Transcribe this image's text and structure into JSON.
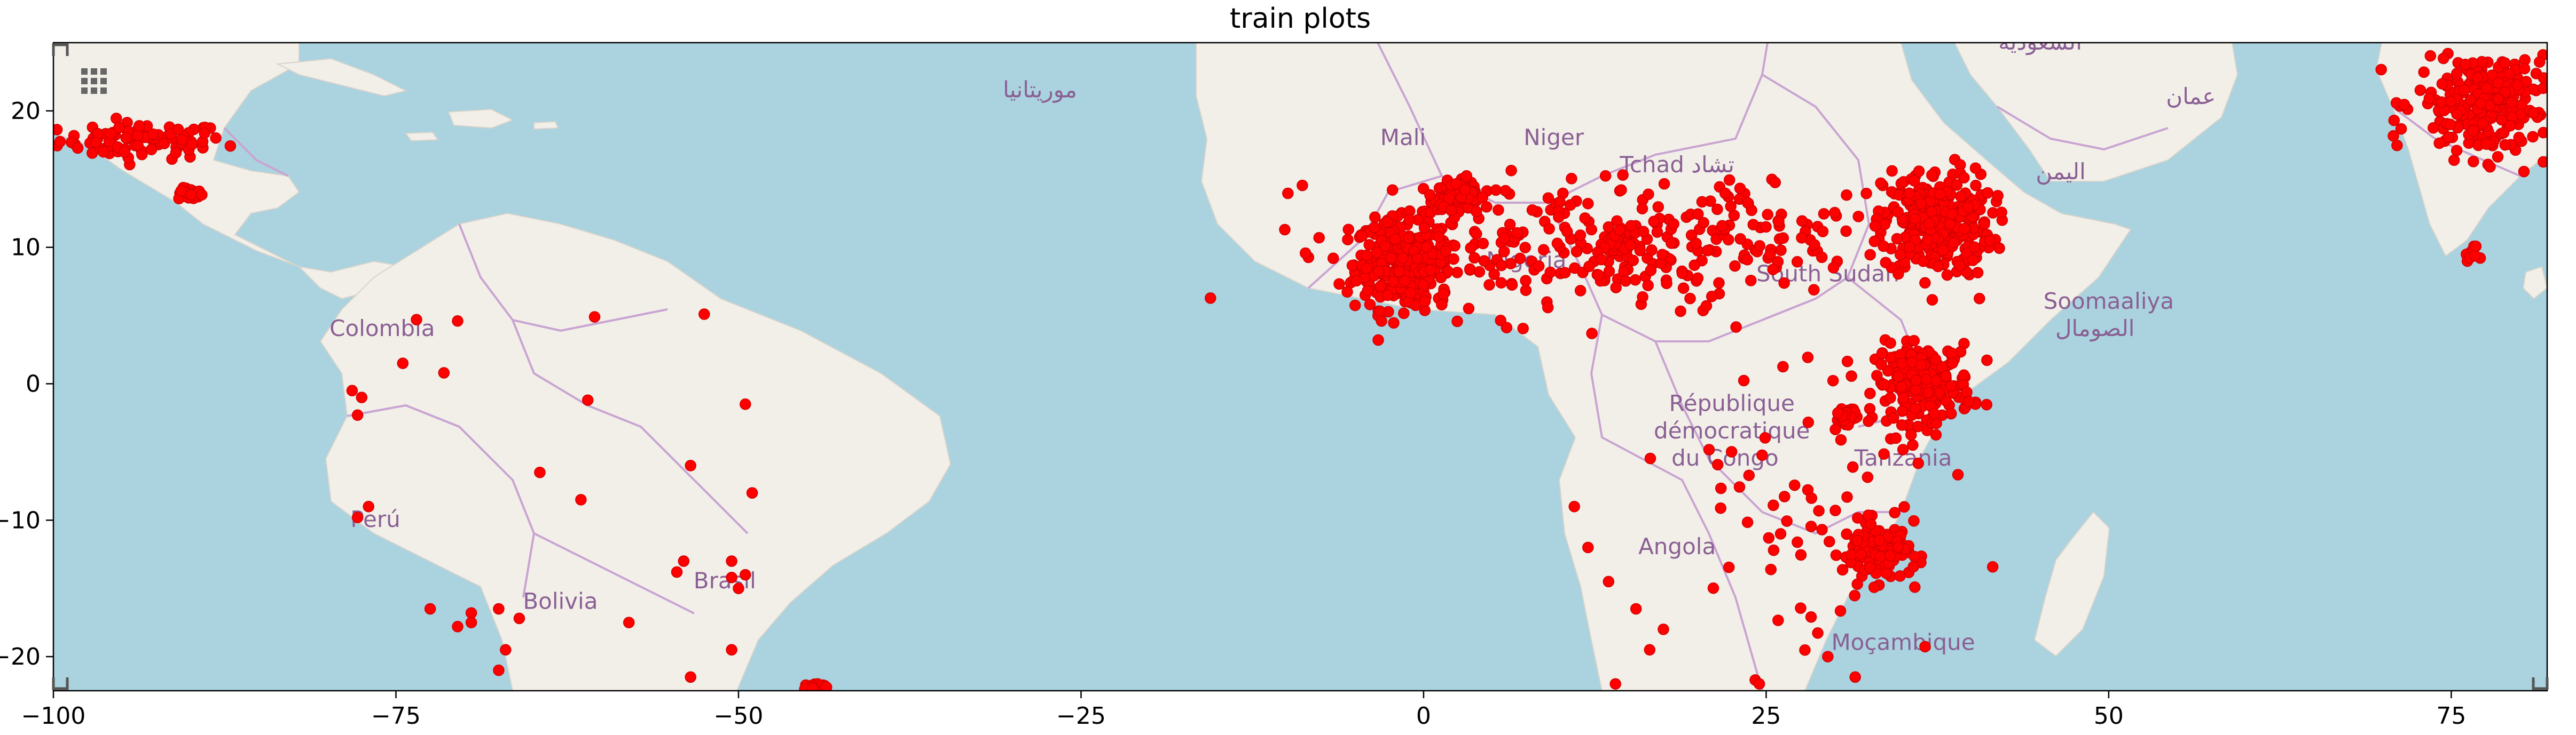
{
  "colors": {
    "ocean": "#aad3df",
    "land": "#f2efe9",
    "border": "#c9a4d1",
    "point": "#ff0000",
    "point_edge": "#d00000",
    "label": "#8a5f93"
  },
  "icons": {
    "grid": "grid-icon"
  },
  "map_labels": [
    {
      "id": "mauritania",
      "text": "موريتانيا",
      "lon": -28,
      "lat": 21
    },
    {
      "id": "mali",
      "text": "Mali",
      "lon": -1.5,
      "lat": 17.5
    },
    {
      "id": "niger",
      "text": "Niger",
      "lon": 9.5,
      "lat": 17.5
    },
    {
      "id": "chad",
      "text": "Tchad تشاد",
      "lon": 18.5,
      "lat": 15.5
    },
    {
      "id": "saudi",
      "text": "السعودية",
      "lon": 45,
      "lat": 24.5
    },
    {
      "id": "oman",
      "text": "عمان",
      "lon": 56,
      "lat": 20.5
    },
    {
      "id": "yemen",
      "text": "اليمن",
      "lon": 46.5,
      "lat": 15
    },
    {
      "id": "nigeria",
      "text": "Nigeria",
      "lon": 7.5,
      "lat": 8.5
    },
    {
      "id": "south_sudan",
      "text": "South Sudan",
      "lon": 29.5,
      "lat": 7.5
    },
    {
      "id": "somalia1",
      "text": "Soomaaliya",
      "lon": 50,
      "lat": 5.5
    },
    {
      "id": "somalia2",
      "text": "الصومال",
      "lon": 49,
      "lat": 3.5
    },
    {
      "id": "colombia",
      "text": "Colombia",
      "lon": -76,
      "lat": 3.5
    },
    {
      "id": "drc1",
      "text": "République",
      "lon": 22.5,
      "lat": -2
    },
    {
      "id": "drc2",
      "text": "démocratique",
      "lon": 22.5,
      "lat": -4
    },
    {
      "id": "drc3",
      "text": "du Congo",
      "lon": 22,
      "lat": -6
    },
    {
      "id": "tanzania",
      "text": "Tanzania",
      "lon": 35,
      "lat": -6
    },
    {
      "id": "peru",
      "text": "Perú",
      "lon": -76.5,
      "lat": -10.5
    },
    {
      "id": "angola",
      "text": "Angola",
      "lon": 18.5,
      "lat": -12.5
    },
    {
      "id": "brasil",
      "text": "Brasil",
      "lon": -51,
      "lat": -15
    },
    {
      "id": "bolivia",
      "text": "Bolivia",
      "lon": -63,
      "lat": -16.5
    },
    {
      "id": "mozambique",
      "text": "Moçambique",
      "lon": 35,
      "lat": -19.5
    }
  ],
  "chart_data": {
    "type": "scatter",
    "title": "train plots",
    "xlim": [
      -100,
      82
    ],
    "ylim": [
      -22.5,
      25
    ],
    "xticks": [
      -100,
      -75,
      -50,
      -25,
      0,
      25,
      50,
      75
    ],
    "yticks": [
      -20,
      -10,
      0,
      10,
      20
    ],
    "grid": false,
    "clusters": [
      {
        "lon": -93.5,
        "lat": 17.8,
        "rx": 5.5,
        "ry": 1.2,
        "n": 90
      },
      {
        "lon": -90,
        "lat": 13.9,
        "rx": 0.8,
        "ry": 0.4,
        "n": 25
      },
      {
        "lon": -1.5,
        "lat": 8.8,
        "rx": 3.2,
        "ry": 3.0,
        "n": 320
      },
      {
        "lon": 2.5,
        "lat": 13.8,
        "rx": 1.6,
        "ry": 0.9,
        "n": 120
      },
      {
        "lon": 14,
        "lat": 10.2,
        "rx": 0.9,
        "ry": 0.7,
        "n": 40
      },
      {
        "lon": 37.5,
        "lat": 11.8,
        "rx": 3.6,
        "ry": 3.6,
        "n": 320
      },
      {
        "lon": 36.5,
        "lat": 0,
        "rx": 3.2,
        "ry": 2.6,
        "n": 200
      },
      {
        "lon": 33,
        "lat": -12.3,
        "rx": 2.2,
        "ry": 2.0,
        "n": 110
      },
      {
        "lon": 30.8,
        "lat": -2.2,
        "rx": 0.9,
        "ry": 0.6,
        "n": 30
      },
      {
        "lon": 77.5,
        "lat": 20.5,
        "rx": 4.6,
        "ry": 3.6,
        "n": 260
      },
      {
        "lon": 76.5,
        "lat": 9.5,
        "rx": 0.4,
        "ry": 0.5,
        "n": 12
      },
      {
        "lon": -44.5,
        "lat": -22.3,
        "rx": 0.9,
        "ry": 0.3,
        "n": 14
      },
      {
        "lon": 10,
        "lat": 10,
        "rx": 14,
        "ry": 4.5,
        "n": 220
      },
      {
        "lon": 25,
        "lat": 11,
        "rx": 10,
        "ry": 4,
        "n": 90
      },
      {
        "lon": 28,
        "lat": -8,
        "rx": 9,
        "ry": 12,
        "n": 70
      }
    ],
    "points": [
      {
        "lon": -73.5,
        "lat": 4.7
      },
      {
        "lon": -70.5,
        "lat": 4.6
      },
      {
        "lon": -60.5,
        "lat": 4.9
      },
      {
        "lon": -52.5,
        "lat": 5.1
      },
      {
        "lon": -74.5,
        "lat": 1.5
      },
      {
        "lon": -71.5,
        "lat": 0.8
      },
      {
        "lon": -78.2,
        "lat": -0.5
      },
      {
        "lon": -77.5,
        "lat": -1.0
      },
      {
        "lon": -77.8,
        "lat": -2.3
      },
      {
        "lon": -61,
        "lat": -1.2
      },
      {
        "lon": -49.5,
        "lat": -1.5
      },
      {
        "lon": -77,
        "lat": -9.0
      },
      {
        "lon": -77.8,
        "lat": -9.8
      },
      {
        "lon": -64.5,
        "lat": -6.5
      },
      {
        "lon": -61.5,
        "lat": -8.5
      },
      {
        "lon": -53.5,
        "lat": -6.0
      },
      {
        "lon": -49,
        "lat": -8.0
      },
      {
        "lon": -54,
        "lat": -13.0
      },
      {
        "lon": -54.5,
        "lat": -13.8
      },
      {
        "lon": -50.5,
        "lat": -13.0
      },
      {
        "lon": -50.5,
        "lat": -14.2
      },
      {
        "lon": -50,
        "lat": -15.0
      },
      {
        "lon": -49.5,
        "lat": -14.0
      },
      {
        "lon": -67.5,
        "lat": -16.5
      },
      {
        "lon": -69.5,
        "lat": -16.8
      },
      {
        "lon": -69.5,
        "lat": -17.5
      },
      {
        "lon": -66,
        "lat": -17.2
      },
      {
        "lon": -58,
        "lat": -17.5
      },
      {
        "lon": -72.5,
        "lat": -16.5
      },
      {
        "lon": -70.5,
        "lat": -17.8
      },
      {
        "lon": -67,
        "lat": -19.5
      },
      {
        "lon": -67.5,
        "lat": -21.0
      },
      {
        "lon": -50.5,
        "lat": -19.5
      },
      {
        "lon": -53.5,
        "lat": -21.5
      },
      {
        "lon": 11,
        "lat": -9.0
      },
      {
        "lon": 12,
        "lat": -12.0
      },
      {
        "lon": 13.5,
        "lat": -14.5
      },
      {
        "lon": 15.5,
        "lat": -16.5
      },
      {
        "lon": 17.5,
        "lat": -18.0
      },
      {
        "lon": 16.5,
        "lat": -19.5
      },
      {
        "lon": 14,
        "lat": -22.0
      },
      {
        "lon": 24.5,
        "lat": -22.0
      },
      {
        "lon": 29.5,
        "lat": -20.0
      },
      {
        "lon": 31.5,
        "lat": -21.5
      }
    ]
  }
}
